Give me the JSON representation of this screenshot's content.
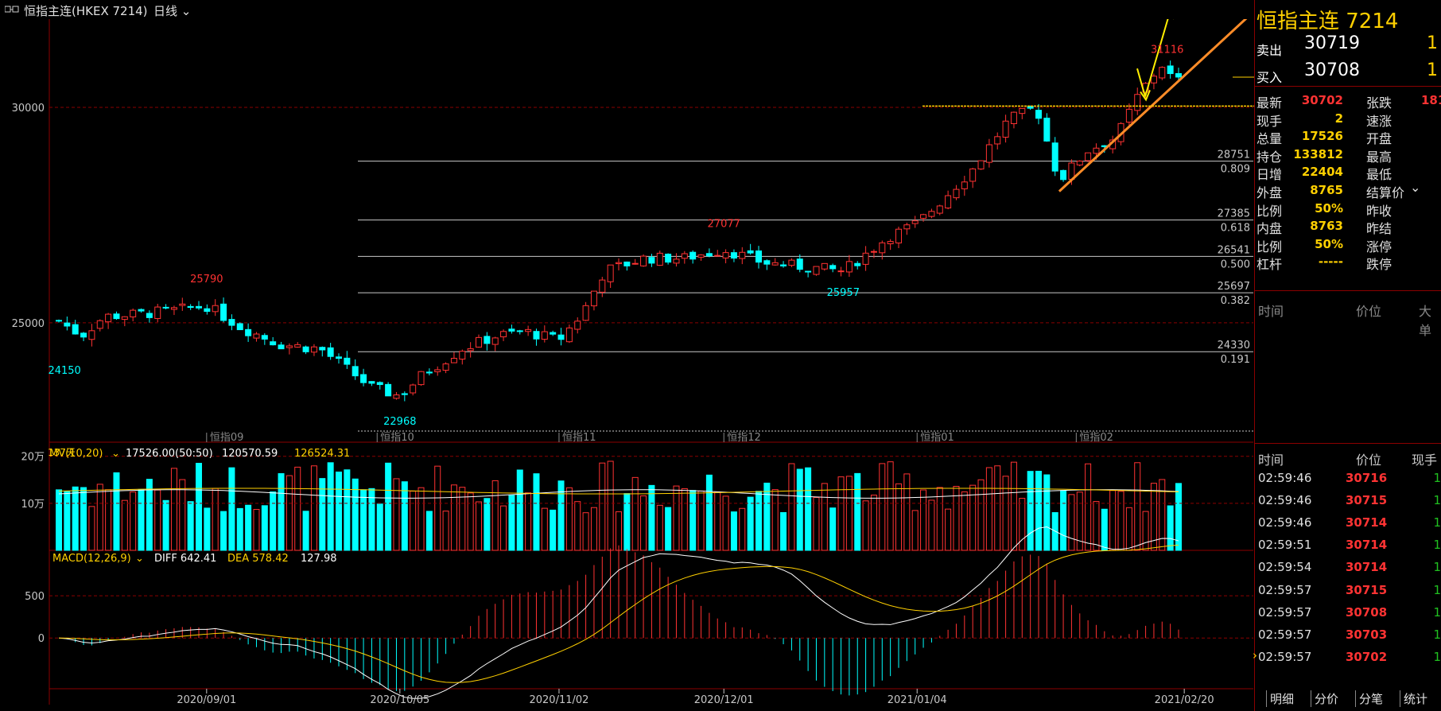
{
  "window": {
    "title": "恒指主连(HKEX 7214)",
    "period": "日线"
  },
  "chart_data": [
    {
      "type": "candlestick",
      "title": "恒指主连(HKEX 7214) 日线",
      "y_ticks": [
        25000,
        30000
      ],
      "ylim": [
        22600,
        31900
      ],
      "date_range": [
        "2020-08-06",
        "2021-02-19"
      ],
      "x_ticks": [
        "2020/09/01",
        "2020/10/05",
        "2020/11/02",
        "2020/12/01",
        "2021/01/04",
        "2021/02/20"
      ],
      "month_labels": [
        "恒指09",
        "恒指10",
        "恒指11",
        "恒指12",
        "恒指01",
        "恒指02"
      ],
      "candles_count": "137天",
      "annotations": [
        {
          "text": "25790",
          "value": 25790,
          "date": "2020-09-01"
        },
        {
          "text": "24150",
          "value": 24150,
          "date": "2020-08-07"
        },
        {
          "text": "22968",
          "value": 22968,
          "date": "2020-10-05"
        },
        {
          "text": "27077",
          "value": 27077,
          "date": "2020-12-01"
        },
        {
          "text": "25957",
          "value": 25957,
          "date": "2020-12-22"
        },
        {
          "text": "31116",
          "value": 31116,
          "date": "2021-02-17"
        }
      ],
      "fib_levels": [
        {
          "price": 28751,
          "ratio": "0.809"
        },
        {
          "price": 27385,
          "ratio": "0.618"
        },
        {
          "price": 26541,
          "ratio": "0.500"
        },
        {
          "price": 25697,
          "ratio": "0.382"
        },
        {
          "price": 24330,
          "ratio": "0.191"
        }
      ],
      "close_path": [
        [
          "2020-08-06",
          25050
        ],
        [
          "2020-08-10",
          24700
        ],
        [
          "2020-08-14",
          25150
        ],
        [
          "2020-08-20",
          25200
        ],
        [
          "2020-08-27",
          25300
        ],
        [
          "2020-09-01",
          25400
        ],
        [
          "2020-09-07",
          24900
        ],
        [
          "2020-09-14",
          24500
        ],
        [
          "2020-09-21",
          24400
        ],
        [
          "2020-09-25",
          24000
        ],
        [
          "2020-09-30",
          23500
        ],
        [
          "2020-10-05",
          23300
        ],
        [
          "2020-10-09",
          23800
        ],
        [
          "2020-10-16",
          24400
        ],
        [
          "2020-10-22",
          24700
        ],
        [
          "2020-10-27",
          24800
        ],
        [
          "2020-11-02",
          24600
        ],
        [
          "2020-11-06",
          25200
        ],
        [
          "2020-11-10",
          26200
        ],
        [
          "2020-11-17",
          26500
        ],
        [
          "2020-11-24",
          26500
        ],
        [
          "2020-12-01",
          26700
        ],
        [
          "2020-12-08",
          26400
        ],
        [
          "2020-12-15",
          26300
        ],
        [
          "2020-12-22",
          26200
        ],
        [
          "2020-12-30",
          27000
        ],
        [
          "2021-01-04",
          27300
        ],
        [
          "2021-01-08",
          27800
        ],
        [
          "2021-01-14",
          28600
        ],
        [
          "2021-01-20",
          29700
        ],
        [
          "2021-01-25",
          30000
        ],
        [
          "2021-01-29",
          28300
        ],
        [
          "2021-02-03",
          29000
        ],
        [
          "2021-02-08",
          29300
        ],
        [
          "2021-02-12",
          30300
        ],
        [
          "2021-02-16",
          31000
        ],
        [
          "2021-02-18",
          30650
        ],
        [
          "2021-02-19",
          30702
        ]
      ],
      "colors": {
        "up": "#ff3232",
        "down": "#00ffff",
        "grid": "#8b0000",
        "fib": "#c8c8c8",
        "trend": "#ff8c28",
        "arrow": "#ffee00"
      }
    },
    {
      "type": "bar",
      "title": "MV(10,20)",
      "series": [
        {
          "name": "MV",
          "values": [
            17526.0
          ]
        },
        {
          "name": "MA10",
          "values": [
            120570.59
          ]
        },
        {
          "name": "MA20",
          "values": [
            126524.31
          ]
        }
      ],
      "y_ticks": [
        "20万",
        "10万"
      ],
      "ylim": [
        0,
        230000
      ]
    },
    {
      "type": "line",
      "title": "MACD(12,26,9)",
      "series": [
        {
          "name": "DIFF",
          "values": [
            642.41
          ]
        },
        {
          "name": "DEA",
          "values": [
            578.42
          ]
        },
        {
          "name": "MACD",
          "values": [
            127.98
          ]
        }
      ],
      "y_ticks": [
        500,
        0
      ],
      "ylim": [
        -450,
        850
      ]
    }
  ],
  "indicators": {
    "mv_label": "MV(10,20)",
    "mv_value": "17526.00(50:50)",
    "mv_ma10": "120570.59",
    "mv_ma20": "126524.31",
    "macd_label": "MACD(12,26,9)",
    "diff": "DIFF 642.41",
    "dea": "DEA 578.42",
    "macd": "127.98"
  },
  "quote_panel": {
    "title": "恒指主连  7214",
    "sell": {
      "label": "卖出",
      "price": "30719",
      "volume": "1"
    },
    "buy": {
      "label": "买入",
      "price": "30708",
      "volume": "1"
    },
    "stats": [
      {
        "k1": "最新",
        "v1": "30702",
        "k2": "张跌",
        "v2": "181"
      },
      {
        "k1": "现手",
        "v1": "2",
        "k2": "速涨",
        "v2": ""
      },
      {
        "k1": "总量",
        "v1": "17526",
        "k2": "开盘",
        "v2": ""
      },
      {
        "k1": "持仓",
        "v1": "133812",
        "k2": "最高",
        "v2": ""
      },
      {
        "k1": "日增",
        "v1": "22404",
        "k2": "最低",
        "v2": ""
      },
      {
        "k1": "外盘",
        "v1": "8765",
        "k2": "结算价",
        "v2": ""
      },
      {
        "k1": "比例",
        "v1": "50%",
        "k2": "昨收",
        "v2": ""
      },
      {
        "k1": "内盘",
        "v1": "8763",
        "k2": "昨结",
        "v2": ""
      },
      {
        "k1": "比例",
        "v1": "50%",
        "k2": "涨停",
        "v2": ""
      },
      {
        "k1": "杠杆",
        "v1": "-----",
        "k2": "跌停",
        "v2": ""
      }
    ],
    "header1": {
      "time": "时间",
      "price": "价位",
      "vol": "大单"
    },
    "header2": {
      "time": "时间",
      "price": "价位",
      "vol": "现手"
    },
    "ticks": [
      {
        "time": "02:59:46",
        "price": "30716",
        "vol": "1"
      },
      {
        "time": "02:59:46",
        "price": "30715",
        "vol": "1"
      },
      {
        "time": "02:59:46",
        "price": "30714",
        "vol": "1"
      },
      {
        "time": "02:59:51",
        "price": "30714",
        "vol": "1"
      },
      {
        "time": "02:59:54",
        "price": "30714",
        "vol": "1"
      },
      {
        "time": "02:59:57",
        "price": "30715",
        "vol": "1"
      },
      {
        "time": "02:59:57",
        "price": "30708",
        "vol": "1"
      },
      {
        "time": "02:59:57",
        "price": "30703",
        "vol": "1"
      },
      {
        "time": "02:59:57",
        "price": "30702",
        "vol": "1"
      }
    ],
    "tabs": [
      "明细",
      "分价",
      "分笔",
      "统计"
    ]
  }
}
